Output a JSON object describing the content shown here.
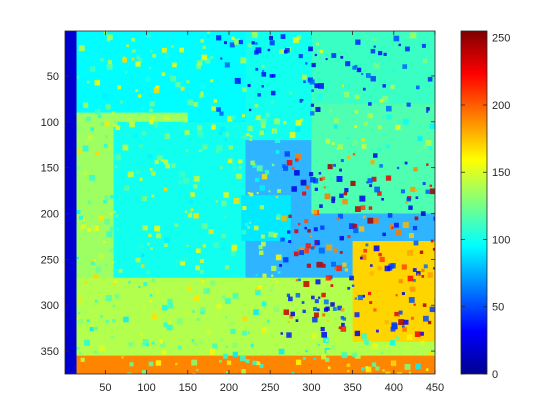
{
  "chart_data": {
    "type": "heatmap",
    "title": "",
    "xlabel": "",
    "ylabel": "",
    "xlim": [
      1,
      450
    ],
    "ylim": [
      375,
      1
    ],
    "x_ticks": [
      50,
      100,
      150,
      200,
      250,
      300,
      350,
      400,
      450
    ],
    "y_ticks": [
      50,
      100,
      150,
      200,
      250,
      300,
      350
    ],
    "colormap": "jet",
    "colorbar": {
      "range": [
        0,
        255
      ],
      "ticks": [
        0,
        50,
        100,
        150,
        200,
        250
      ],
      "placement": "right"
    },
    "regions": [
      {
        "label": "left edge strip",
        "x": [
          1,
          15
        ],
        "y": [
          1,
          375
        ],
        "value": 20
      },
      {
        "label": "upper left background",
        "x": [
          15,
          220
        ],
        "y": [
          1,
          100
        ],
        "value": 95
      },
      {
        "label": "upper middle background",
        "x": [
          220,
          300
        ],
        "y": [
          1,
          120
        ],
        "value": 100
      },
      {
        "label": "upper right background",
        "x": [
          300,
          450
        ],
        "y": [
          1,
          80
        ],
        "value": 110
      },
      {
        "label": "right upper band",
        "x": [
          300,
          450
        ],
        "y": [
          80,
          200
        ],
        "value": 115
      },
      {
        "label": "left diagonal plane",
        "x": [
          15,
          150
        ],
        "y": [
          90,
          360
        ],
        "value": 135
      },
      {
        "label": "middle left wall",
        "x": [
          60,
          220
        ],
        "y": [
          100,
          280
        ],
        "value": 100
      },
      {
        "label": "central object",
        "x": [
          215,
          275
        ],
        "y": [
          180,
          230
        ],
        "value": 90
      },
      {
        "label": "lower floor",
        "x": [
          15,
          450
        ],
        "y": [
          270,
          360
        ],
        "value": 140
      },
      {
        "label": "lower right object",
        "x": [
          350,
          450
        ],
        "y": [
          230,
          340
        ],
        "value": 170
      },
      {
        "label": "bottom edge strip",
        "x": [
          15,
          450
        ],
        "y": [
          355,
          375
        ],
        "value": 190
      }
    ]
  }
}
